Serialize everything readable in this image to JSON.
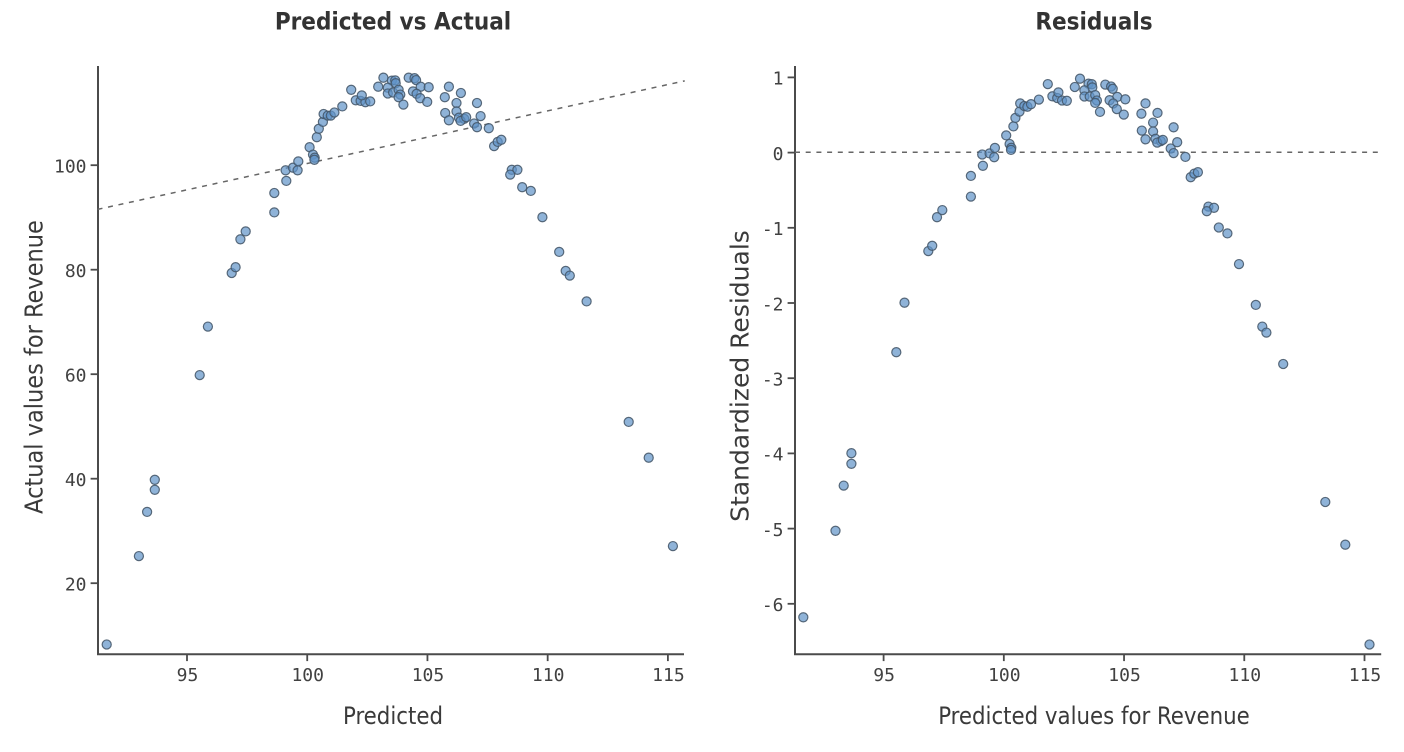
{
  "page": {
    "background": "#ffffff"
  },
  "style": {
    "marker_fill": "#6093c8",
    "marker_fill_opacity": 0.7,
    "marker_stroke": "#445669",
    "marker_stroke_opacity": 0.88,
    "marker_radius": 4.55,
    "marker_stroke_width": 1.2,
    "axis_color": "#4b4b4b",
    "tick_label_color": "#414141",
    "title_color": "#333333",
    "label_color": "#3a3a3a",
    "dash_color": "#666666"
  },
  "chart_data": [
    {
      "type": "scatter",
      "title": "Predicted vs Actual",
      "xlabel": "Predicted",
      "ylabel": "Actual values for Revenue",
      "x_ticks": [
        95,
        100,
        105,
        110,
        115
      ],
      "y_ticks": [
        20,
        40,
        60,
        80,
        100
      ],
      "xlim": [
        91.28,
        115.7
      ],
      "ylim": [
        6.6,
        118.5
      ],
      "grid": false,
      "legend": null,
      "reference_line": {
        "kind": "identity",
        "equation": "y = x",
        "style": "dashed"
      },
      "series": [
        {
          "name": "observations",
          "points": [
            [
              91.66,
              8.6
            ],
            [
              93.0,
              25.4
            ],
            [
              93.34,
              33.8
            ],
            [
              93.66,
              39.9
            ],
            [
              93.66,
              38.0
            ],
            [
              95.53,
              59.8
            ],
            [
              95.87,
              69.0
            ],
            [
              96.86,
              79.2
            ],
            [
              97.02,
              80.3
            ],
            [
              97.22,
              85.6
            ],
            [
              97.44,
              87.1
            ],
            [
              98.63,
              90.7
            ],
            [
              98.63,
              94.4
            ],
            [
              99.1,
              98.7
            ],
            [
              99.13,
              96.7
            ],
            [
              99.41,
              99.2
            ],
            [
              99.6,
              98.7
            ],
            [
              99.63,
              100.4
            ],
            [
              100.1,
              103.1
            ],
            [
              100.24,
              101.7
            ],
            [
              100.31,
              101.1
            ],
            [
              100.3,
              100.7
            ],
            [
              100.4,
              105.0
            ],
            [
              100.48,
              106.6
            ],
            [
              100.65,
              107.9
            ],
            [
              100.68,
              109.4
            ],
            [
              100.85,
              109.1
            ],
            [
              100.98,
              109.1
            ],
            [
              101.13,
              109.7
            ],
            [
              101.46,
              110.85
            ],
            [
              101.83,
              114.0
            ],
            [
              102.02,
              112.0
            ],
            [
              102.22,
              111.9
            ],
            [
              102.42,
              111.65
            ],
            [
              102.62,
              111.8
            ],
            [
              102.27,
              112.95
            ],
            [
              102.95,
              114.6
            ],
            [
              103.17,
              116.3
            ],
            [
              103.52,
              115.75
            ],
            [
              103.66,
              115.8
            ],
            [
              103.68,
              115.25
            ],
            [
              103.35,
              114.4
            ],
            [
              103.35,
              113.3
            ],
            [
              103.57,
              113.5
            ],
            [
              103.8,
              114.0
            ],
            [
              103.87,
              113.1
            ],
            [
              103.8,
              112.6
            ],
            [
              104.0,
              111.2
            ],
            [
              104.22,
              116.3
            ],
            [
              104.46,
              116.2
            ],
            [
              104.53,
              115.85
            ],
            [
              104.72,
              114.6
            ],
            [
              104.4,
              113.7
            ],
            [
              104.55,
              113.25
            ],
            [
              104.7,
              112.4
            ],
            [
              104.99,
              111.7
            ],
            [
              105.05,
              114.5
            ],
            [
              105.89,
              114.6
            ],
            [
              105.72,
              112.6
            ],
            [
              105.74,
              109.6
            ],
            [
              105.89,
              108.2
            ],
            [
              106.39,
              113.4
            ],
            [
              106.21,
              111.5
            ],
            [
              106.21,
              109.9
            ],
            [
              106.31,
              108.7
            ],
            [
              106.53,
              108.5
            ],
            [
              106.38,
              108.1
            ],
            [
              106.61,
              108.8
            ],
            [
              106.94,
              107.6
            ],
            [
              107.06,
              111.5
            ],
            [
              107.21,
              109.0
            ],
            [
              107.06,
              106.9
            ],
            [
              107.55,
              106.7
            ],
            [
              107.77,
              103.3
            ],
            [
              107.92,
              104.1
            ],
            [
              108.07,
              104.5
            ],
            [
              108.51,
              98.8
            ],
            [
              108.74,
              98.8
            ],
            [
              108.44,
              97.9
            ],
            [
              108.94,
              95.5
            ],
            [
              109.3,
              94.8
            ],
            [
              109.78,
              89.8
            ],
            [
              110.48,
              83.2
            ],
            [
              110.75,
              79.6
            ],
            [
              110.92,
              78.7
            ],
            [
              111.62,
              73.8
            ],
            [
              113.37,
              50.9
            ],
            [
              114.2,
              44.1
            ],
            [
              115.21,
              27.3
            ]
          ]
        }
      ]
    },
    {
      "type": "scatter",
      "title": "Residuals",
      "xlabel": "Predicted values for Revenue",
      "ylabel": "Standardized Residuals",
      "x_ticks": [
        95,
        100,
        105,
        110,
        115
      ],
      "y_ticks": [
        1,
        0,
        -1,
        -2,
        -3,
        -4,
        -5,
        -6
      ],
      "xlim": [
        91.28,
        115.7
      ],
      "ylim": [
        -6.68,
        1.14
      ],
      "grid": false,
      "legend": null,
      "reference_line": {
        "kind": "zero",
        "equation": "y = 0",
        "style": "dashed"
      },
      "series": [
        {
          "name": "standardized residuals",
          "points": [
            [
              91.66,
              -6.185
            ],
            [
              93.0,
              -5.034
            ],
            [
              93.34,
              -4.433
            ],
            [
              93.66,
              -4.003
            ],
            [
              93.66,
              -4.144
            ],
            [
              95.53,
              -2.66
            ],
            [
              95.87,
              -2.001
            ],
            [
              96.86,
              -1.315
            ],
            [
              97.02,
              -1.245
            ],
            [
              97.22,
              -0.865
            ],
            [
              97.44,
              -0.77
            ],
            [
              98.63,
              -0.59
            ],
            [
              98.63,
              -0.315
            ],
            [
              99.1,
              -0.03
            ],
            [
              99.13,
              -0.181
            ],
            [
              99.41,
              -0.016
            ],
            [
              99.6,
              -0.067
            ],
            [
              99.63,
              0.057
            ],
            [
              100.1,
              0.223
            ],
            [
              100.24,
              0.109
            ],
            [
              100.31,
              0.059
            ],
            [
              100.3,
              0.03
            ],
            [
              100.4,
              0.343
            ],
            [
              100.48,
              0.456
            ],
            [
              100.65,
              0.54
            ],
            [
              100.68,
              0.649
            ],
            [
              100.85,
              0.614
            ],
            [
              100.98,
              0.605
            ],
            [
              101.13,
              0.638
            ],
            [
              101.46,
              0.699
            ],
            [
              101.83,
              0.906
            ],
            [
              102.02,
              0.743
            ],
            [
              102.22,
              0.721
            ],
            [
              102.42,
              0.687
            ],
            [
              102.62,
              0.684
            ],
            [
              102.27,
              0.795
            ],
            [
              102.95,
              0.867
            ],
            [
              103.17,
              0.978
            ],
            [
              103.52,
              0.911
            ],
            [
              103.66,
              0.904
            ],
            [
              103.68,
              0.862
            ],
            [
              103.35,
              0.823
            ],
            [
              103.35,
              0.741
            ],
            [
              103.57,
              0.739
            ],
            [
              103.8,
              0.759
            ],
            [
              103.87,
              0.687
            ],
            [
              103.8,
              0.655
            ],
            [
              104.0,
              0.536
            ],
            [
              104.22,
              0.899
            ],
            [
              104.46,
              0.874
            ],
            [
              104.53,
              0.843
            ],
            [
              104.72,
              0.736
            ],
            [
              104.4,
              0.692
            ],
            [
              104.55,
              0.648
            ],
            [
              104.7,
              0.573
            ],
            [
              104.99,
              0.5
            ],
            [
              105.05,
              0.704
            ],
            [
              105.89,
              0.649
            ],
            [
              105.72,
              0.512
            ],
            [
              105.74,
              0.287
            ],
            [
              105.89,
              0.172
            ],
            [
              106.39,
              0.522
            ],
            [
              106.21,
              0.394
            ],
            [
              106.21,
              0.275
            ],
            [
              106.31,
              0.178
            ],
            [
              106.53,
              0.147
            ],
            [
              106.38,
              0.128
            ],
            [
              106.61,
              0.163
            ],
            [
              106.94,
              0.049
            ],
            [
              107.06,
              0.331
            ],
            [
              107.21,
              0.133
            ],
            [
              107.06,
              -0.012
            ],
            [
              107.55,
              -0.063
            ],
            [
              107.77,
              -0.333
            ],
            [
              107.92,
              -0.284
            ],
            [
              108.07,
              -0.266
            ],
            [
              108.51,
              -0.723
            ],
            [
              108.74,
              -0.74
            ],
            [
              108.44,
              -0.785
            ],
            [
              108.94,
              -1.001
            ],
            [
              109.3,
              -1.08
            ],
            [
              109.78,
              -1.488
            ],
            [
              110.48,
              -2.031
            ],
            [
              110.75,
              -2.319
            ],
            [
              110.92,
              -2.399
            ],
            [
              111.62,
              -2.816
            ],
            [
              113.37,
              -4.652
            ],
            [
              114.2,
              -5.22
            ],
            [
              115.21,
              -6.546
            ]
          ]
        }
      ]
    }
  ]
}
